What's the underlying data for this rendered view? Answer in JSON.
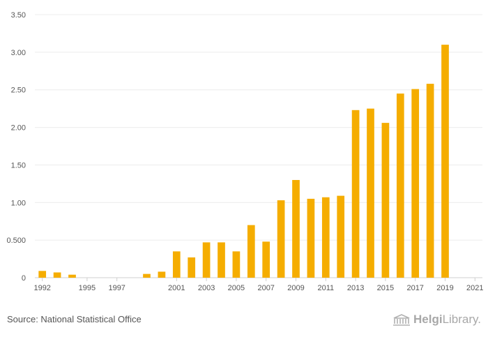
{
  "chart_data": {
    "type": "bar",
    "title": "",
    "xlabel": "",
    "ylabel": "",
    "ylim": [
      0,
      3.5
    ],
    "y_ticks": [
      "0",
      "0.500",
      "1.00",
      "1.50",
      "2.00",
      "2.50",
      "3.00",
      "3.50"
    ],
    "categories": [
      "1992",
      "1993",
      "1994",
      "1995",
      "1996",
      "1997",
      "1998",
      "1999",
      "2000",
      "2001",
      "2002",
      "2003",
      "2004",
      "2005",
      "2006",
      "2007",
      "2008",
      "2009",
      "2010",
      "2011",
      "2012",
      "2013",
      "2014",
      "2015",
      "2016",
      "2017",
      "2018",
      "2019",
      "2020",
      "2021"
    ],
    "x_tick_labels": [
      "1992",
      "1995",
      "1997",
      "2001",
      "2003",
      "2005",
      "2007",
      "2009",
      "2011",
      "2013",
      "2015",
      "2017",
      "2019",
      "2021"
    ],
    "values": [
      0.09,
      0.07,
      0.04,
      0,
      0,
      0,
      0,
      0.05,
      0.08,
      0.35,
      0.27,
      0.47,
      0.47,
      0.35,
      0.7,
      0.48,
      1.03,
      1.3,
      1.05,
      1.07,
      1.09,
      2.23,
      2.25,
      2.06,
      2.45,
      2.51,
      2.58,
      3.1,
      0,
      0
    ],
    "bar_color": "#f5ad00",
    "grid": true
  },
  "footer": {
    "source": "Source: National Statistical Office",
    "brand_part1": "Helgi",
    "brand_part2": "Library."
  }
}
